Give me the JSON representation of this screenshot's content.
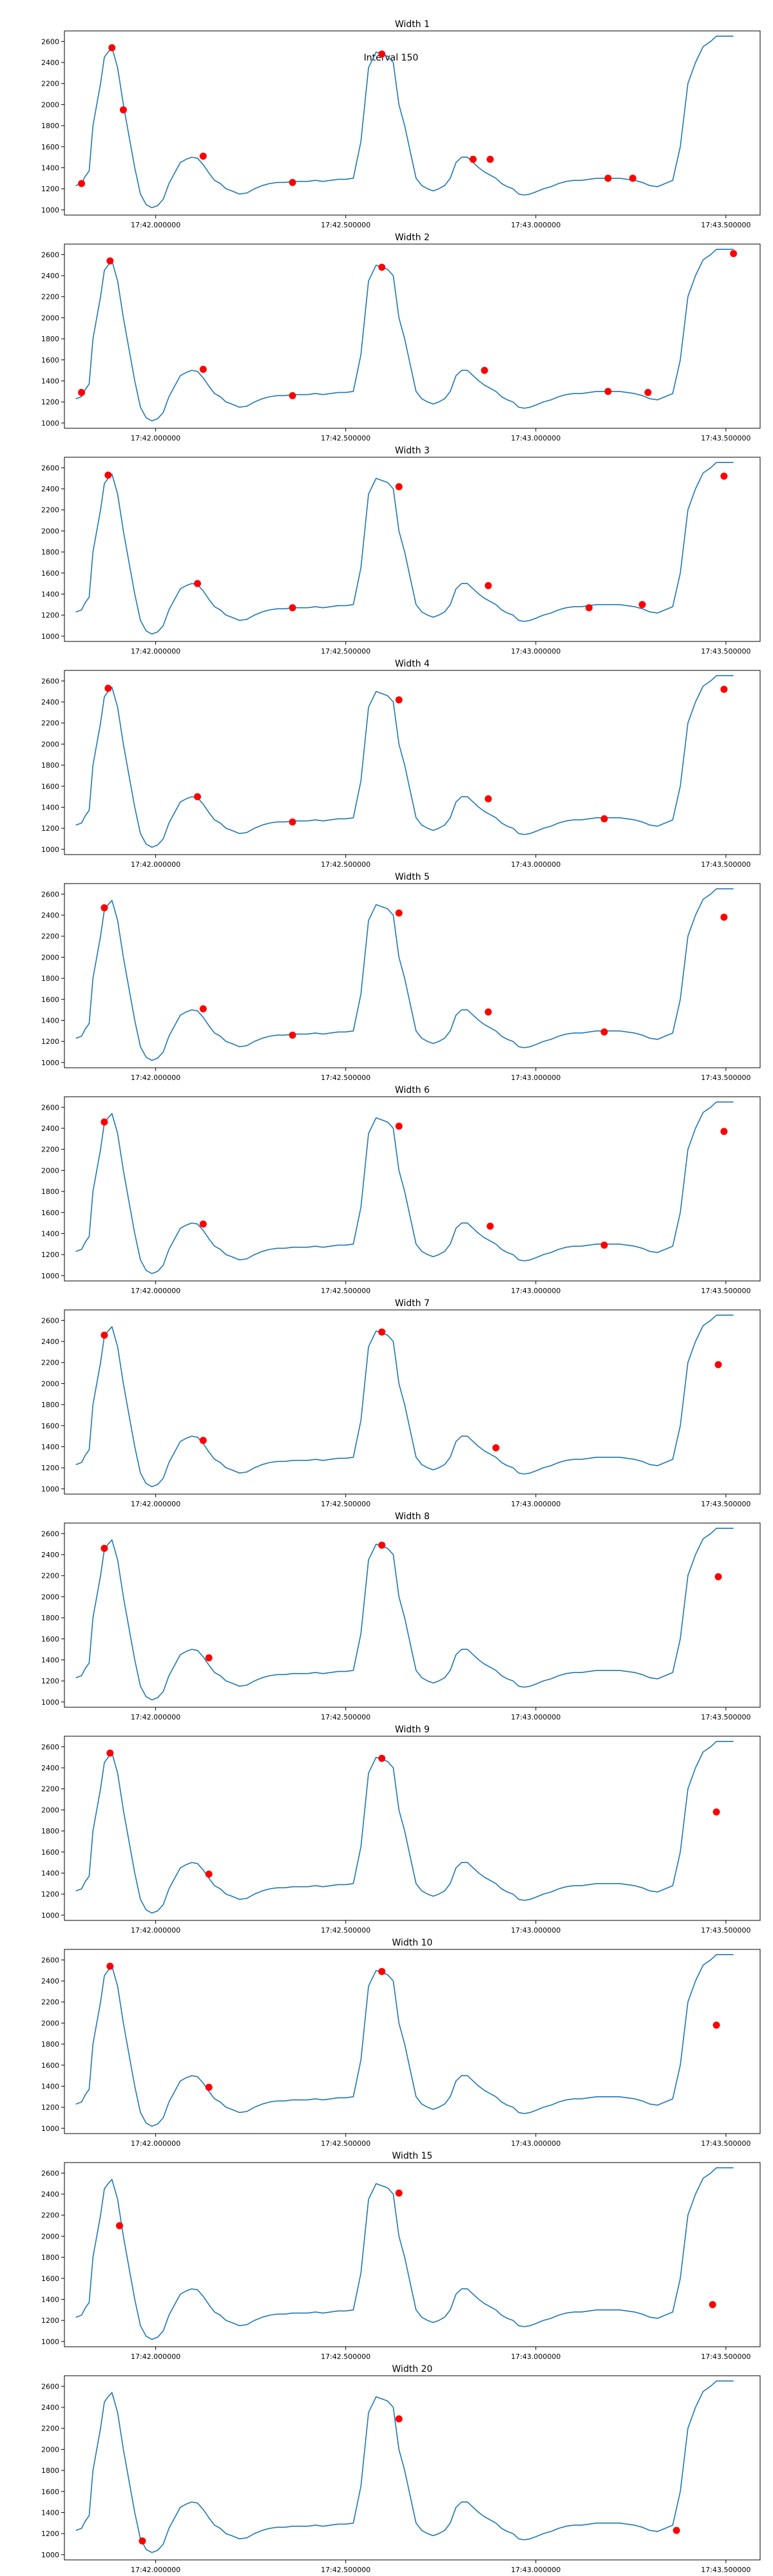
{
  "figure": {
    "annotation": "Interval 150"
  },
  "colors": {
    "line": "#1f77b4",
    "marker": "#ff0000",
    "axes": "#000000"
  },
  "chart_data": {
    "type": "line",
    "x_unit": "time (HH:MM:SS.sss)",
    "x_ticks": [
      {
        "t": "17:42.000000",
        "label": "17:42.000000"
      },
      {
        "t": "17:42.500000",
        "label": "17:42.500000"
      },
      {
        "t": "17:43.000000",
        "label": "17:43.000000"
      },
      {
        "t": "17:43.500000",
        "label": "17:43.500000"
      }
    ],
    "xlim": [
      "17:41.760",
      "17:43.590"
    ],
    "ylim": [
      950,
      2700
    ],
    "y_ticks": [
      1000,
      1200,
      1400,
      1600,
      1800,
      2000,
      2200,
      2400,
      2600
    ],
    "grid": false,
    "series_x": [
      "17:41.790",
      "17:41.805",
      "17:41.815",
      "17:41.825",
      "17:41.835",
      "17:41.845",
      "17:41.855",
      "17:41.865",
      "17:41.875",
      "17:41.885",
      "17:41.900",
      "17:41.915",
      "17:41.930",
      "17:41.945",
      "17:41.960",
      "17:41.975",
      "17:41.990",
      "17:42.005",
      "17:42.020",
      "17:42.035",
      "17:42.050",
      "17:42.065",
      "17:42.080",
      "17:42.095",
      "17:42.110",
      "17:42.125",
      "17:42.140",
      "17:42.155",
      "17:42.170",
      "17:42.185",
      "17:42.200",
      "17:42.220",
      "17:42.240",
      "17:42.260",
      "17:42.280",
      "17:42.300",
      "17:42.320",
      "17:42.340",
      "17:42.360",
      "17:42.380",
      "17:42.400",
      "17:42.420",
      "17:42.440",
      "17:42.460",
      "17:42.480",
      "17:42.500",
      "17:42.520",
      "17:42.540",
      "17:42.560",
      "17:42.580",
      "17:42.595",
      "17:42.610",
      "17:42.625",
      "17:42.640",
      "17:42.655",
      "17:42.670",
      "17:42.685",
      "17:42.700",
      "17:42.715",
      "17:42.730",
      "17:42.745",
      "17:42.760",
      "17:42.775",
      "17:42.790",
      "17:42.805",
      "17:42.820",
      "17:42.835",
      "17:42.850",
      "17:42.865",
      "17:42.880",
      "17:42.895",
      "17:42.910",
      "17:42.925",
      "17:42.940",
      "17:42.955",
      "17:42.970",
      "17:42.985",
      "17:43.000",
      "17:43.020",
      "17:43.040",
      "17:43.060",
      "17:43.080",
      "17:43.100",
      "17:43.120",
      "17:43.140",
      "17:43.160",
      "17:43.180",
      "17:43.200",
      "17:43.220",
      "17:43.240",
      "17:43.260",
      "17:43.280",
      "17:43.300",
      "17:43.320",
      "17:43.340",
      "17:43.360",
      "17:43.380",
      "17:43.400",
      "17:43.420",
      "17:43.440",
      "17:43.460",
      "17:43.475",
      "17:43.490",
      "17:43.505",
      "17:43.520"
    ],
    "series_y": [
      1230,
      1250,
      1320,
      1370,
      1800,
      2000,
      2200,
      2450,
      2500,
      2540,
      2350,
      2000,
      1700,
      1400,
      1150,
      1050,
      1020,
      1040,
      1100,
      1250,
      1350,
      1450,
      1480,
      1500,
      1490,
      1430,
      1350,
      1280,
      1250,
      1200,
      1180,
      1150,
      1160,
      1200,
      1230,
      1250,
      1260,
      1260,
      1270,
      1270,
      1270,
      1280,
      1270,
      1280,
      1290,
      1290,
      1300,
      1650,
      2350,
      2500,
      2480,
      2460,
      2400,
      2000,
      1800,
      1550,
      1300,
      1230,
      1200,
      1180,
      1200,
      1230,
      1300,
      1450,
      1500,
      1500,
      1450,
      1400,
      1360,
      1330,
      1300,
      1250,
      1220,
      1200,
      1150,
      1140,
      1150,
      1170,
      1200,
      1220,
      1250,
      1270,
      1280,
      1280,
      1290,
      1300,
      1300,
      1300,
      1300,
      1290,
      1280,
      1260,
      1230,
      1220,
      1250,
      1280,
      1600,
      2200,
      2400,
      2550,
      2600,
      2650,
      2650,
      2650,
      2650
    ],
    "panels": [
      {
        "title": "Width 1",
        "markers": [
          {
            "x": "17:41.805",
            "y": 1250
          },
          {
            "x": "17:41.885",
            "y": 2540
          },
          {
            "x": "17:41.915",
            "y": 1950
          },
          {
            "x": "17:42.125",
            "y": 1510
          },
          {
            "x": "17:42.360",
            "y": 1260
          },
          {
            "x": "17:42.595",
            "y": 2480
          },
          {
            "x": "17:42.835",
            "y": 1480
          },
          {
            "x": "17:42.880",
            "y": 1480
          },
          {
            "x": "17:43.190",
            "y": 1300
          },
          {
            "x": "17:43.255",
            "y": 1300
          }
        ]
      },
      {
        "title": "Width 2",
        "markers": [
          {
            "x": "17:41.805",
            "y": 1290
          },
          {
            "x": "17:41.880",
            "y": 2540
          },
          {
            "x": "17:42.125",
            "y": 1510
          },
          {
            "x": "17:42.360",
            "y": 1260
          },
          {
            "x": "17:42.595",
            "y": 2480
          },
          {
            "x": "17:42.865",
            "y": 1500
          },
          {
            "x": "17:43.190",
            "y": 1300
          },
          {
            "x": "17:43.295",
            "y": 1290
          },
          {
            "x": "17:43.520",
            "y": 2610
          }
        ]
      },
      {
        "title": "Width 3",
        "markers": [
          {
            "x": "17:41.875",
            "y": 2530
          },
          {
            "x": "17:42.110",
            "y": 1500
          },
          {
            "x": "17:42.360",
            "y": 1270
          },
          {
            "x": "17:42.640",
            "y": 2420
          },
          {
            "x": "17:42.875",
            "y": 1480
          },
          {
            "x": "17:43.140",
            "y": 1270
          },
          {
            "x": "17:43.280",
            "y": 1300
          },
          {
            "x": "17:43.495",
            "y": 2520
          }
        ]
      },
      {
        "title": "Width 4",
        "markers": [
          {
            "x": "17:41.875",
            "y": 2530
          },
          {
            "x": "17:42.110",
            "y": 1500
          },
          {
            "x": "17:42.360",
            "y": 1260
          },
          {
            "x": "17:42.640",
            "y": 2420
          },
          {
            "x": "17:42.875",
            "y": 1480
          },
          {
            "x": "17:43.180",
            "y": 1290
          },
          {
            "x": "17:43.495",
            "y": 2520
          }
        ]
      },
      {
        "title": "Width 5",
        "markers": [
          {
            "x": "17:41.865",
            "y": 2470
          },
          {
            "x": "17:42.125",
            "y": 1510
          },
          {
            "x": "17:42.360",
            "y": 1260
          },
          {
            "x": "17:42.640",
            "y": 2420
          },
          {
            "x": "17:42.875",
            "y": 1480
          },
          {
            "x": "17:43.180",
            "y": 1290
          },
          {
            "x": "17:43.495",
            "y": 2380
          }
        ]
      },
      {
        "title": "Width 6",
        "markers": [
          {
            "x": "17:41.865",
            "y": 2460
          },
          {
            "x": "17:42.125",
            "y": 1490
          },
          {
            "x": "17:42.640",
            "y": 2420
          },
          {
            "x": "17:42.880",
            "y": 1470
          },
          {
            "x": "17:43.180",
            "y": 1290
          },
          {
            "x": "17:43.495",
            "y": 2370
          }
        ]
      },
      {
        "title": "Width 7",
        "markers": [
          {
            "x": "17:41.865",
            "y": 2460
          },
          {
            "x": "17:42.125",
            "y": 1460
          },
          {
            "x": "17:42.595",
            "y": 2490
          },
          {
            "x": "17:42.895",
            "y": 1390
          },
          {
            "x": "17:43.480",
            "y": 2180
          }
        ]
      },
      {
        "title": "Width 8",
        "markers": [
          {
            "x": "17:41.865",
            "y": 2460
          },
          {
            "x": "17:42.140",
            "y": 1420
          },
          {
            "x": "17:42.595",
            "y": 2490
          },
          {
            "x": "17:43.480",
            "y": 2190
          }
        ]
      },
      {
        "title": "Width 9",
        "markers": [
          {
            "x": "17:41.880",
            "y": 2540
          },
          {
            "x": "17:42.140",
            "y": 1390
          },
          {
            "x": "17:42.595",
            "y": 2490
          },
          {
            "x": "17:43.475",
            "y": 1980
          }
        ]
      },
      {
        "title": "Width 10",
        "markers": [
          {
            "x": "17:41.880",
            "y": 2540
          },
          {
            "x": "17:42.140",
            "y": 1390
          },
          {
            "x": "17:42.595",
            "y": 2490
          },
          {
            "x": "17:43.475",
            "y": 1980
          }
        ]
      },
      {
        "title": "Width 15",
        "markers": [
          {
            "x": "17:41.905",
            "y": 2100
          },
          {
            "x": "17:42.640",
            "y": 2410
          },
          {
            "x": "17:43.465",
            "y": 1350
          }
        ]
      },
      {
        "title": "Width 20",
        "markers": [
          {
            "x": "17:41.965",
            "y": 1130
          },
          {
            "x": "17:42.640",
            "y": 2290
          },
          {
            "x": "17:43.370",
            "y": 1230
          }
        ]
      }
    ]
  }
}
